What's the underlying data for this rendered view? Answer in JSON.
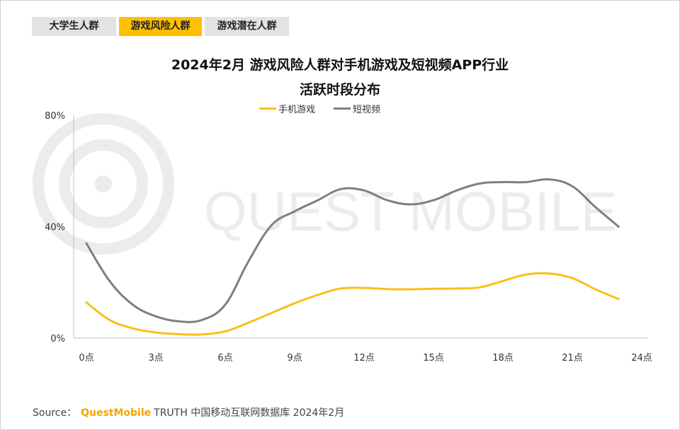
{
  "tabs": [
    {
      "label": "大学生人群",
      "active": false
    },
    {
      "label": "游戏风险人群",
      "active": true
    },
    {
      "label": "游戏潜在人群",
      "active": false
    }
  ],
  "title_line1": "2024年2月 游戏风险人群对手机游戏及短视频APP行业",
  "title_line2": "活跃时段分布",
  "watermark": "QUEST MOBILE",
  "source": {
    "prefix": "Source：",
    "brand": "QuestMobile",
    "text": "TRUTH 中国移动互联网数据库 2024年2月"
  },
  "colors": {
    "mobile_games": "#fbbf1c",
    "short_video": "#7f7f7f",
    "accent": "#ffc000"
  },
  "chart_data": {
    "type": "line",
    "x": [
      0,
      1,
      2,
      3,
      4,
      5,
      6,
      7,
      8,
      9,
      10,
      11,
      12,
      13,
      14,
      15,
      16,
      17,
      18,
      19,
      20,
      21,
      22,
      23
    ],
    "x_tick_labels": [
      "0点",
      "3点",
      "6点",
      "9点",
      "12点",
      "15点",
      "18点",
      "21点",
      "24点"
    ],
    "x_tick_values": [
      0,
      3,
      6,
      9,
      12,
      15,
      18,
      21,
      24
    ],
    "y_tick_labels": [
      "0%",
      "40%",
      "80%"
    ],
    "y_tick_values": [
      0,
      40,
      80
    ],
    "ylim": [
      0,
      80
    ],
    "xlabel": "",
    "ylabel": "",
    "series": [
      {
        "name": "手机游戏",
        "values": [
          12.8,
          6.5,
          3.5,
          2.0,
          1.4,
          1.3,
          2.4,
          5.5,
          9.0,
          12.5,
          15.5,
          17.8,
          18.0,
          17.6,
          17.5,
          17.7,
          17.8,
          18.2,
          20.5,
          22.8,
          23.2,
          21.5,
          17.5,
          14.0
        ]
      },
      {
        "name": "短视频",
        "values": [
          34.0,
          20.5,
          12.0,
          7.8,
          6.0,
          6.5,
          12.0,
          27.5,
          40.5,
          45.5,
          49.5,
          53.5,
          53.0,
          49.5,
          48.0,
          49.5,
          53.0,
          55.5,
          56.0,
          56.0,
          57.0,
          54.5,
          47.0,
          40.0
        ]
      }
    ],
    "series_x_end": 23,
    "grid": false,
    "legend_position": "top-center"
  }
}
